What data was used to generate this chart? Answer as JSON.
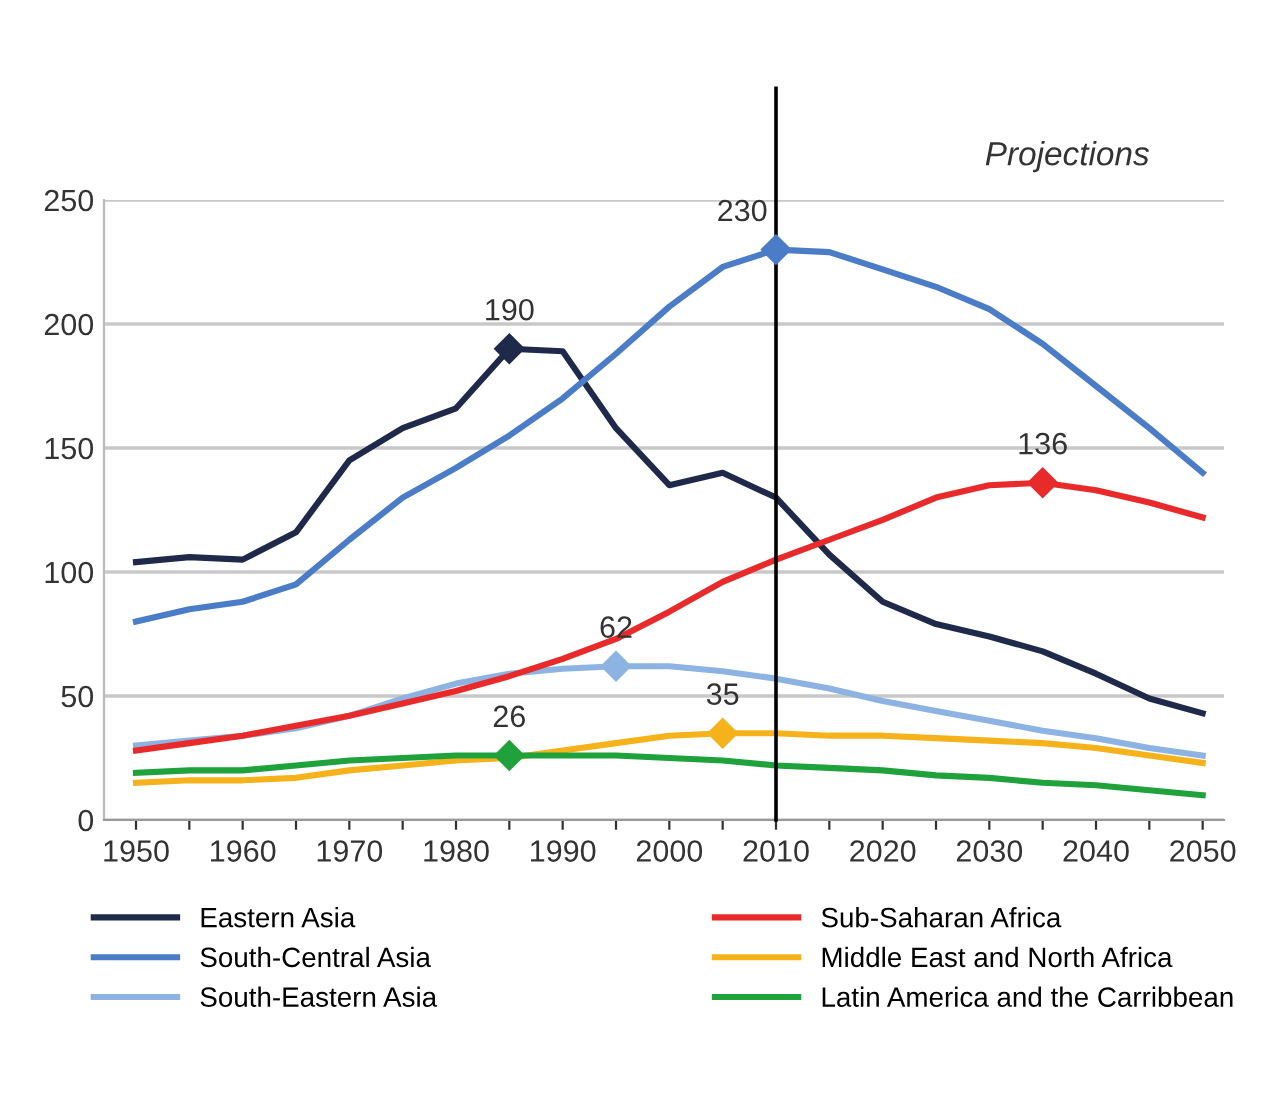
{
  "chart_data": {
    "type": "line",
    "x": [
      1950,
      1955,
      1960,
      1965,
      1970,
      1975,
      1980,
      1985,
      1990,
      1995,
      2000,
      2005,
      2010,
      2015,
      2020,
      2025,
      2030,
      2035,
      2040,
      2045,
      2050
    ],
    "series": [
      {
        "name": "Eastern Asia",
        "color": "#1f2a4a",
        "values": [
          104,
          106,
          105,
          116,
          145,
          158,
          166,
          190,
          189,
          158,
          135,
          140,
          130,
          107,
          88,
          79,
          74,
          68,
          59,
          49,
          43
        ]
      },
      {
        "name": "South-Central Asia",
        "color": "#4a7cc7",
        "values": [
          80,
          85,
          88,
          95,
          113,
          130,
          142,
          155,
          170,
          188,
          207,
          223,
          230,
          229,
          222,
          215,
          206,
          192,
          175,
          158,
          140
        ]
      },
      {
        "name": "South-Eastern Asia",
        "color": "#8db3e2",
        "values": [
          30,
          32,
          34,
          37,
          42,
          49,
          55,
          59,
          61,
          62,
          62,
          60,
          57,
          53,
          48,
          44,
          40,
          36,
          33,
          29,
          26
        ]
      },
      {
        "name": "Sub-Saharan Africa",
        "color": "#e82a2a",
        "values": [
          28,
          31,
          34,
          38,
          42,
          47,
          52,
          58,
          65,
          73,
          84,
          96,
          105,
          113,
          121,
          130,
          135,
          136,
          133,
          128,
          122
        ]
      },
      {
        "name": "Middle East and North Africa",
        "color": "#f5b21b",
        "values": [
          15,
          16,
          16,
          17,
          20,
          22,
          24,
          25,
          28,
          31,
          34,
          35,
          35,
          34,
          34,
          33,
          32,
          31,
          29,
          26,
          23
        ]
      },
      {
        "name": "Latin America and the Carribbean",
        "color": "#1fa13b",
        "values": [
          19,
          20,
          20,
          22,
          24,
          25,
          26,
          26,
          26,
          26,
          25,
          24,
          22,
          21,
          20,
          18,
          17,
          15,
          14,
          12,
          10
        ]
      }
    ],
    "xlim": [
      1947,
      2052
    ],
    "xticks": [
      1950,
      {
        "value": 1955,
        "label": null
      },
      1960,
      {
        "value": 1965,
        "label": null
      },
      1970,
      {
        "value": 1975,
        "label": null
      },
      1980,
      {
        "value": 1985,
        "label": null
      },
      1990,
      {
        "value": 1995,
        "label": null
      },
      2000,
      {
        "value": 2005,
        "label": null
      },
      2010,
      {
        "value": 2015,
        "label": null
      },
      2020,
      {
        "value": 2025,
        "label": null
      },
      2030,
      {
        "value": 2035,
        "label": null
      },
      2040,
      {
        "value": 2045,
        "label": null
      },
      2050
    ],
    "ylim": [
      0,
      250
    ],
    "yticks": [
      0,
      50,
      100,
      150,
      200,
      250
    ],
    "grid": "y",
    "legend": "bottom",
    "marker": "none",
    "line_style": "solid",
    "ref_lines": [
      {
        "axis": "x",
        "value": 2010,
        "color": "#000000"
      }
    ],
    "annotations": [
      "Projections",
      {
        "text": "190",
        "x": 1985,
        "y": 190
      },
      {
        "text": "230",
        "x": 2010,
        "y": 230
      },
      {
        "text": "136",
        "x": 2035,
        "y": 136
      },
      {
        "text": "62",
        "x": 1995,
        "y": 62
      },
      {
        "text": "35",
        "x": 2005,
        "y": 35
      },
      {
        "text": "26",
        "x": 1985,
        "y": 26
      }
    ]
  }
}
